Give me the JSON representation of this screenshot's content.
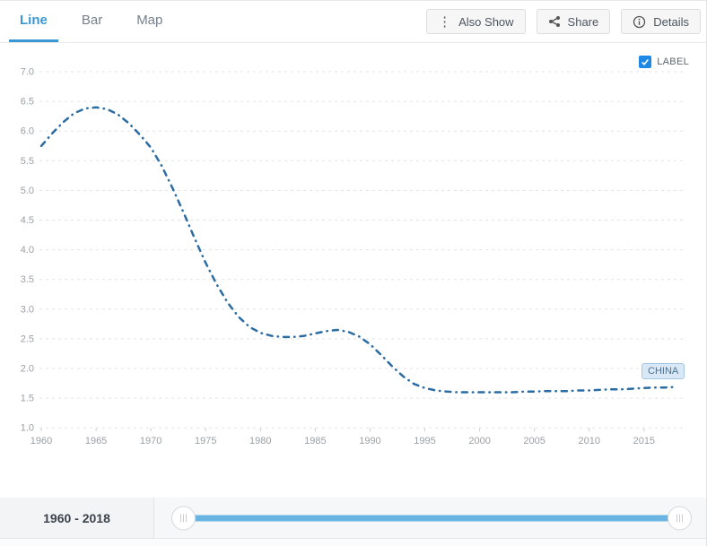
{
  "tabs": [
    {
      "label": "Line",
      "active": true
    },
    {
      "label": "Bar",
      "active": false
    },
    {
      "label": "Map",
      "active": false
    }
  ],
  "toolbar": {
    "also_show_label": "Also Show",
    "share_label": "Share",
    "details_label": "Details"
  },
  "legend": {
    "label": "LABEL",
    "checked": true
  },
  "chart_data": {
    "type": "line",
    "title": "",
    "xlabel": "",
    "ylabel": "",
    "series_name": "CHINA",
    "end_label": "CHINA",
    "line_style": "dash-dot",
    "grid": "dashed-horizontal",
    "legend_position": "top-right",
    "ylim": [
      1.0,
      7.0
    ],
    "xlim": [
      1960,
      2018
    ],
    "yticks": [
      "7.0",
      "6.5",
      "6.0",
      "5.5",
      "5.0",
      "4.5",
      "4.0",
      "3.5",
      "3.0",
      "2.5",
      "2.0",
      "1.5",
      "1.0"
    ],
    "xticks": [
      1960,
      1965,
      1970,
      1975,
      1980,
      1985,
      1990,
      1995,
      2000,
      2005,
      2010,
      2015
    ],
    "years": [
      1960,
      1961,
      1962,
      1963,
      1964,
      1965,
      1966,
      1967,
      1968,
      1969,
      1970,
      1971,
      1972,
      1973,
      1974,
      1975,
      1976,
      1977,
      1978,
      1979,
      1980,
      1981,
      1982,
      1983,
      1984,
      1985,
      1986,
      1987,
      1988,
      1989,
      1990,
      1991,
      1992,
      1993,
      1994,
      1995,
      1996,
      1997,
      1998,
      1999,
      2000,
      2001,
      2002,
      2003,
      2004,
      2005,
      2006,
      2007,
      2008,
      2009,
      2010,
      2011,
      2012,
      2013,
      2014,
      2015,
      2016,
      2017,
      2018
    ],
    "values": [
      5.75,
      5.96,
      6.15,
      6.3,
      6.38,
      6.4,
      6.37,
      6.28,
      6.13,
      5.94,
      5.72,
      5.41,
      5.03,
      4.62,
      4.19,
      3.78,
      3.42,
      3.11,
      2.87,
      2.7,
      2.6,
      2.55,
      2.53,
      2.53,
      2.55,
      2.59,
      2.63,
      2.65,
      2.62,
      2.54,
      2.41,
      2.23,
      2.04,
      1.87,
      1.74,
      1.67,
      1.63,
      1.61,
      1.6,
      1.6,
      1.6,
      1.6,
      1.6,
      1.6,
      1.61,
      1.61,
      1.62,
      1.62,
      1.62,
      1.63,
      1.63,
      1.64,
      1.65,
      1.65,
      1.66,
      1.67,
      1.68,
      1.68,
      1.69
    ]
  },
  "range_slider": {
    "label": "1960 - 2018",
    "start": 1960,
    "end": 2018
  },
  "colors": {
    "tab_active_blue": "#3b97d3",
    "line_blue": "#2b6ca3",
    "slider_blue": "#6ab4e4",
    "checkbox_blue": "#1e88e5",
    "grid_gray": "#e3e3e3",
    "axis_text_gray": "#9aa0a6"
  }
}
